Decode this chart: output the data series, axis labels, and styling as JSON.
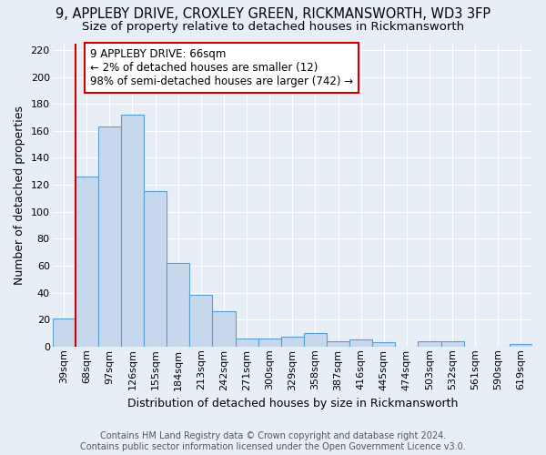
{
  "title": "9, APPLEBY DRIVE, CROXLEY GREEN, RICKMANSWORTH, WD3 3FP",
  "subtitle": "Size of property relative to detached houses in Rickmansworth",
  "xlabel": "Distribution of detached houses by size in Rickmansworth",
  "ylabel": "Number of detached properties",
  "footer_line1": "Contains HM Land Registry data © Crown copyright and database right 2024.",
  "footer_line2": "Contains public sector information licensed under the Open Government Licence v3.0.",
  "categories": [
    "39sqm",
    "68sqm",
    "97sqm",
    "126sqm",
    "155sqm",
    "184sqm",
    "213sqm",
    "242sqm",
    "271sqm",
    "300sqm",
    "329sqm",
    "358sqm",
    "387sqm",
    "416sqm",
    "445sqm",
    "474sqm",
    "503sqm",
    "532sqm",
    "561sqm",
    "590sqm",
    "619sqm"
  ],
  "values": [
    21,
    126,
    163,
    172,
    115,
    62,
    38,
    26,
    6,
    6,
    7,
    10,
    4,
    5,
    3,
    0,
    4,
    4,
    0,
    0,
    2
  ],
  "bar_color": "#c8d8ec",
  "bar_edge_color": "#5a9fd4",
  "background_color": "#e8eef6",
  "grid_color": "#ffffff",
  "ylim": [
    0,
    225
  ],
  "yticks": [
    0,
    20,
    40,
    60,
    80,
    100,
    120,
    140,
    160,
    180,
    200,
    220
  ],
  "annotation_line1": "9 APPLEBY DRIVE: 66sqm",
  "annotation_line2": "← 2% of detached houses are smaller (12)",
  "annotation_line3": "98% of semi-detached houses are larger (742) →",
  "annotation_box_color": "#ffffff",
  "annotation_box_edge_color": "#cc0000",
  "red_line_bin_index": 1,
  "title_fontsize": 10.5,
  "subtitle_fontsize": 9.5,
  "xlabel_fontsize": 9,
  "ylabel_fontsize": 9,
  "tick_fontsize": 8,
  "annotation_fontsize": 8.5,
  "footer_fontsize": 7
}
